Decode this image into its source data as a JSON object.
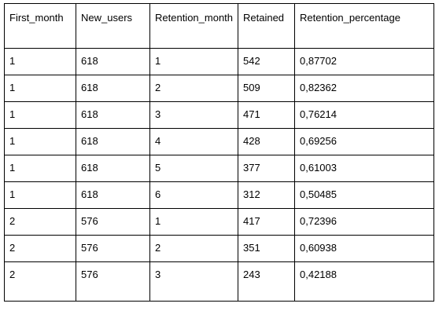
{
  "table": {
    "columns": [
      "First_month",
      "New_users",
      "Retention_month",
      "Retained",
      "Retention_percentage"
    ],
    "rows": [
      [
        "1",
        "618",
        "1",
        "542",
        "0,87702"
      ],
      [
        "1",
        "618",
        "2",
        "509",
        "0,82362"
      ],
      [
        "1",
        "618",
        "3",
        "471",
        "0,76214"
      ],
      [
        "1",
        "618",
        "4",
        "428",
        "0,69256"
      ],
      [
        "1",
        "618",
        "5",
        "377",
        "0,61003"
      ],
      [
        "1",
        "618",
        "6",
        "312",
        "0,50485"
      ],
      [
        "2",
        "576",
        "1",
        "417",
        "0,72396"
      ],
      [
        "2",
        "576",
        "2",
        "351",
        "0,60938"
      ],
      [
        "2",
        "576",
        "3",
        "243",
        "0,42188"
      ]
    ]
  }
}
